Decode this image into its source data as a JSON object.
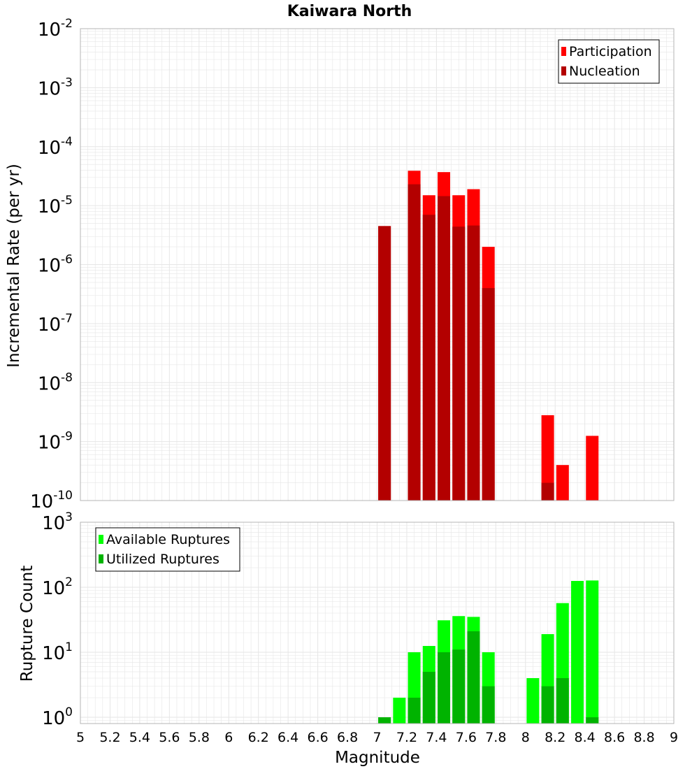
{
  "title": "Kaiwara North",
  "colors": {
    "participation": "#ff0000",
    "nucleation": "#b30000",
    "available": "#00ff00",
    "utilized": "#00b300",
    "grid": "#e6e6e6",
    "frame": "#b4b4b4"
  },
  "x_ticks": [
    "5",
    "5.2",
    "5.4",
    "5.6",
    "5.8",
    "6",
    "6.2",
    "6.4",
    "6.6",
    "6.8",
    "7",
    "7.2",
    "7.4",
    "7.6",
    "7.8",
    "8",
    "8.2",
    "8.4",
    "8.6",
    "8.8",
    "9"
  ],
  "xlabel": "Magnitude",
  "chart_data": [
    {
      "type": "bar",
      "ylabel": "Incremental Rate (per yr)",
      "yscale": "log",
      "ylim": [
        1e-10,
        0.01
      ],
      "xlim": [
        5,
        9
      ],
      "x_ticks": [
        5,
        5.2,
        5.4,
        5.6,
        5.8,
        6,
        6.2,
        6.4,
        6.6,
        6.8,
        7,
        7.2,
        7.4,
        7.6,
        7.8,
        8,
        8.2,
        8.4,
        8.6,
        8.8,
        9
      ],
      "y_ticks": [
        {
          "base": "10",
          "exp": "-10"
        },
        {
          "base": "10",
          "exp": "-9"
        },
        {
          "base": "10",
          "exp": "-8"
        },
        {
          "base": "10",
          "exp": "-7"
        },
        {
          "base": "10",
          "exp": "-6"
        },
        {
          "base": "10",
          "exp": "-5"
        },
        {
          "base": "10",
          "exp": "-4"
        },
        {
          "base": "10",
          "exp": "-3"
        },
        {
          "base": "10",
          "exp": "-2"
        }
      ],
      "legend": {
        "position": "top-right"
      },
      "series": [
        {
          "name": "Participation",
          "color": "#ff0000",
          "x": [
            7.05,
            7.25,
            7.35,
            7.45,
            7.55,
            7.65,
            7.75,
            8.15,
            8.25,
            8.45
          ],
          "values": [
            4.5e-06,
            3.9e-05,
            1.5e-05,
            3.7e-05,
            1.5e-05,
            1.9e-05,
            2e-06,
            2.8e-09,
            4e-10,
            1.25e-09
          ]
        },
        {
          "name": "Nucleation",
          "color": "#b30000",
          "x": [
            7.05,
            7.25,
            7.35,
            7.45,
            7.55,
            7.65,
            7.75,
            8.15
          ],
          "values": [
            4.5e-06,
            2.3e-05,
            7e-06,
            1.45e-05,
            4.4e-06,
            4.6e-06,
            4e-07,
            2e-10
          ]
        }
      ]
    },
    {
      "type": "bar",
      "ylabel": "Rupture Count",
      "yscale": "log",
      "ylim": [
        0.8,
        1000
      ],
      "xlim": [
        5,
        9
      ],
      "x_ticks": [
        5,
        5.2,
        5.4,
        5.6,
        5.8,
        6,
        6.2,
        6.4,
        6.6,
        6.8,
        7,
        7.2,
        7.4,
        7.6,
        7.8,
        8,
        8.2,
        8.4,
        8.6,
        8.8,
        9
      ],
      "y_ticks": [
        {
          "base": "10",
          "exp": "0"
        },
        {
          "base": "10",
          "exp": "1"
        },
        {
          "base": "10",
          "exp": "2"
        },
        {
          "base": "10",
          "exp": "3"
        }
      ],
      "legend": {
        "position": "top-left"
      },
      "series": [
        {
          "name": "Available Ruptures",
          "color": "#00ff00",
          "x": [
            7.05,
            7.15,
            7.25,
            7.35,
            7.45,
            7.55,
            7.65,
            7.75,
            8.05,
            8.15,
            8.25,
            8.35,
            8.45
          ],
          "values": [
            1,
            2,
            10,
            12.5,
            31,
            36,
            35,
            10,
            4,
            19,
            57,
            125,
            127
          ]
        },
        {
          "name": "Utilized Ruptures",
          "color": "#00b300",
          "x": [
            7.05,
            7.25,
            7.35,
            7.45,
            7.55,
            7.65,
            7.75,
            8.15,
            8.25,
            8.45
          ],
          "values": [
            1,
            2,
            5,
            10,
            11,
            21,
            3,
            3,
            4,
            1
          ]
        }
      ]
    }
  ]
}
